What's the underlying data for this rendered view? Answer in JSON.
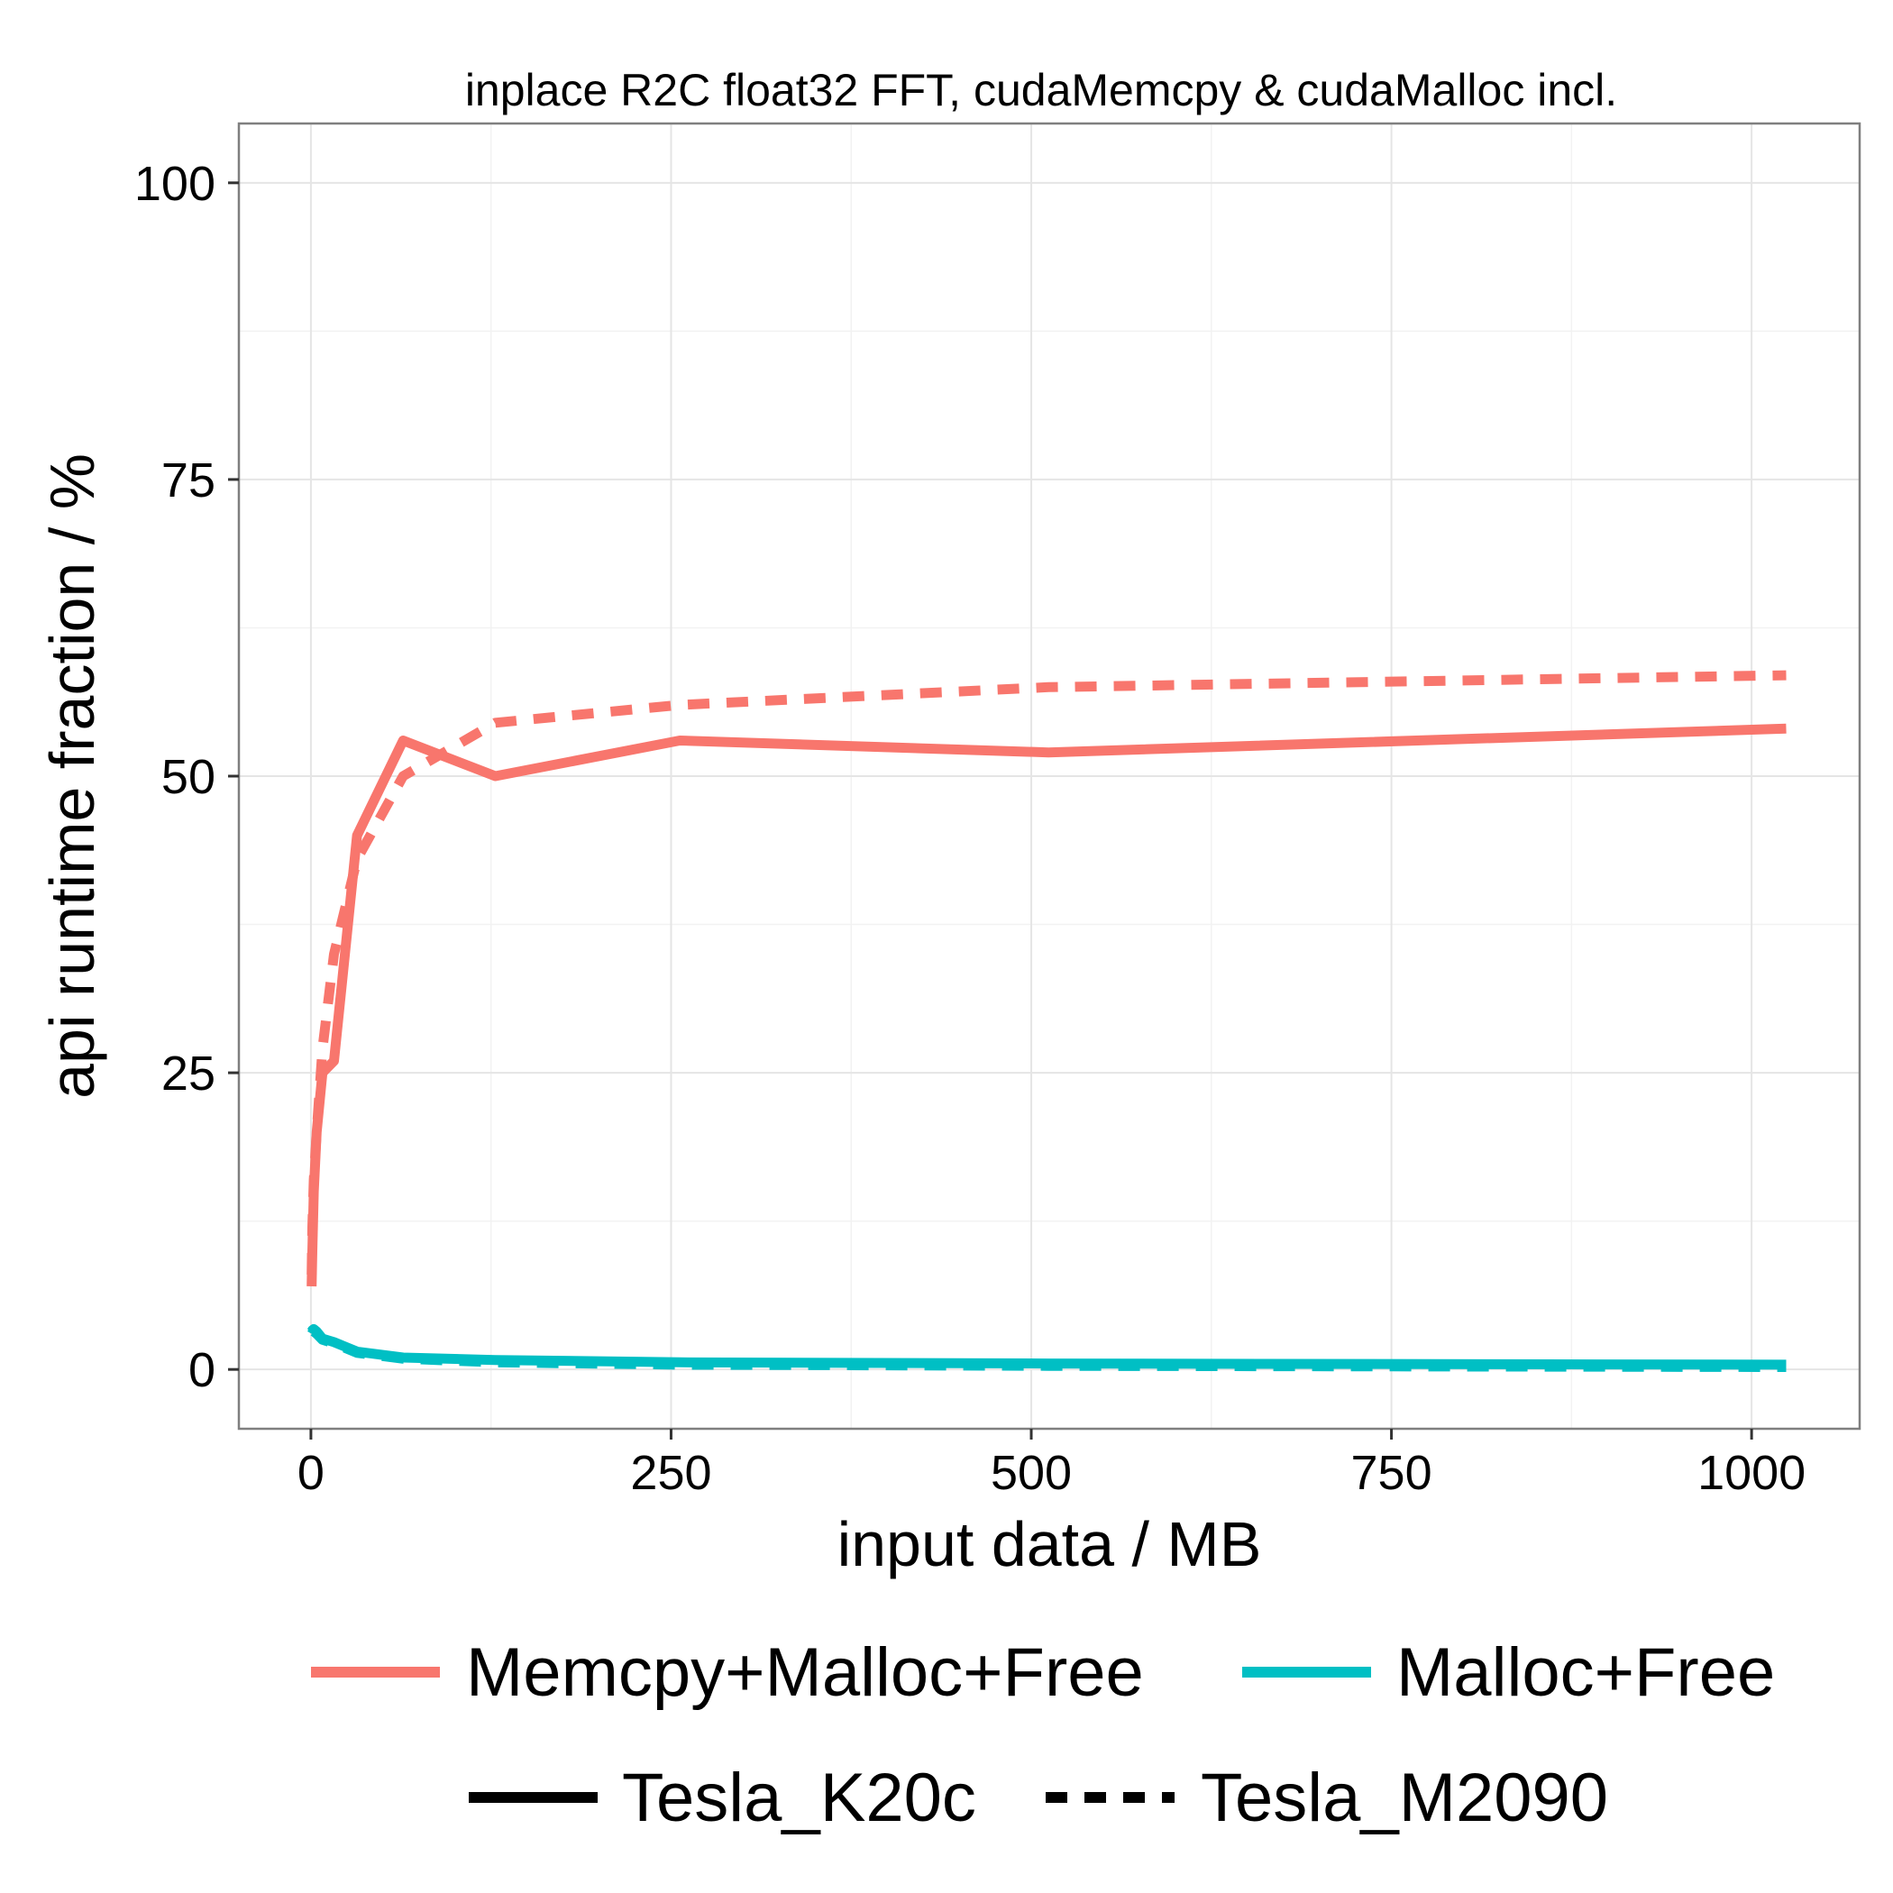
{
  "chart_data": {
    "type": "line",
    "title": "inplace R2C float32 FFT, cudaMemcpy & cudaMalloc incl.",
    "xlabel": "input data / MB",
    "ylabel": "api runtime fraction / %",
    "xlim": [
      -50,
      1075
    ],
    "ylim": [
      -5,
      105
    ],
    "xticks": [
      0,
      250,
      500,
      750,
      1000
    ],
    "yticks": [
      0,
      25,
      50,
      75,
      100
    ],
    "grid": true,
    "legend_position": "bottom",
    "legend": {
      "color_entries": [
        {
          "label": "Memcpy+Malloc+Free",
          "color": "#F8766D"
        },
        {
          "label": "Malloc+Free",
          "color": "#00BFC4"
        }
      ],
      "linetype_entries": [
        {
          "label": "Tesla_K20c",
          "dash": "solid"
        },
        {
          "label": "Tesla_M2090",
          "dash": "dashed"
        }
      ]
    },
    "series": [
      {
        "group": "Memcpy+Malloc+Free",
        "device": "Tesla_K20c",
        "color": "#F8766D",
        "dash": "solid",
        "x": [
          0.5,
          1,
          2,
          4,
          8,
          16,
          32,
          64,
          128,
          256,
          512,
          1024
        ],
        "y": [
          7,
          10,
          15,
          20,
          25,
          26,
          45,
          53,
          50,
          53,
          52,
          54
        ]
      },
      {
        "group": "Memcpy+Malloc+Free",
        "device": "Tesla_M2090",
        "color": "#F8766D",
        "dash": "dashed",
        "x": [
          0.5,
          1,
          2,
          4,
          8,
          16,
          32,
          64,
          128,
          256,
          512,
          1024
        ],
        "y": [
          8,
          12,
          16,
          20,
          27,
          35,
          43,
          50,
          54.5,
          56,
          57.5,
          58.5
        ]
      },
      {
        "group": "Malloc+Free",
        "device": "Tesla_K20c",
        "color": "#00BFC4",
        "dash": "solid",
        "x": [
          0.5,
          1,
          2,
          4,
          8,
          16,
          32,
          64,
          128,
          256,
          512,
          1024
        ],
        "y": [
          3.2,
          3.3,
          3.4,
          3.2,
          2.6,
          2.3,
          1.5,
          1.0,
          0.8,
          0.6,
          0.5,
          0.4
        ]
      },
      {
        "group": "Malloc+Free",
        "device": "Tesla_M2090",
        "color": "#00BFC4",
        "dash": "dashed",
        "x": [
          0.5,
          1,
          2,
          4,
          8,
          16,
          32,
          64,
          128,
          256,
          512,
          1024
        ],
        "y": [
          3.0,
          3.1,
          3.2,
          3.0,
          2.5,
          2.2,
          1.4,
          0.9,
          0.6,
          0.4,
          0.3,
          0.2
        ]
      }
    ]
  }
}
